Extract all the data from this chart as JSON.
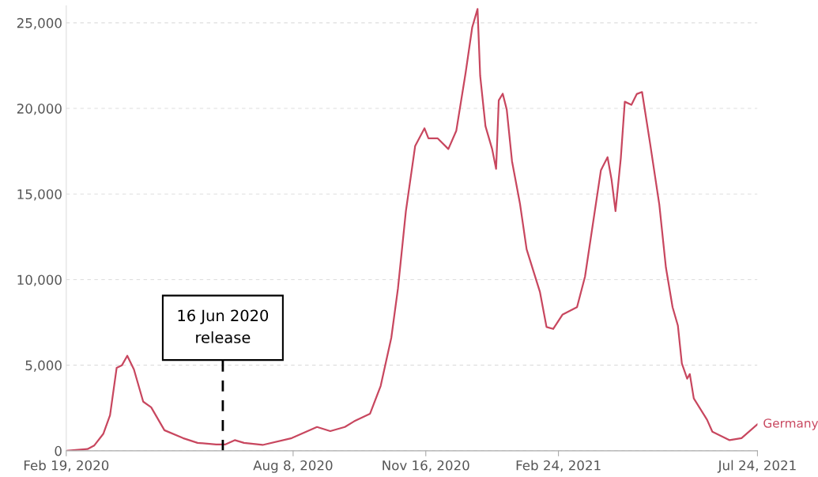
{
  "chart_data": {
    "type": "line",
    "x": [
      "2020-02-19",
      "2020-03-06",
      "2020-03-11",
      "2020-03-18",
      "2020-03-23",
      "2020-03-28",
      "2020-04-01",
      "2020-04-05",
      "2020-04-10",
      "2020-04-17",
      "2020-04-23",
      "2020-05-03",
      "2020-05-17",
      "2020-05-28",
      "2020-06-11",
      "2020-06-18",
      "2020-06-25",
      "2020-07-02",
      "2020-07-16",
      "2020-08-07",
      "2020-08-26",
      "2020-09-05",
      "2020-09-16",
      "2020-09-23",
      "2020-10-05",
      "2020-10-13",
      "2020-10-21",
      "2020-10-26",
      "2020-11-01",
      "2020-11-08",
      "2020-11-15",
      "2020-11-18",
      "2020-11-25",
      "2020-12-03",
      "2020-12-09",
      "2020-12-16",
      "2020-12-21",
      "2020-12-25",
      "2020-12-27",
      "2020-12-31",
      "2021-01-05",
      "2021-01-08",
      "2021-01-10",
      "2021-01-13",
      "2021-01-16",
      "2021-01-20",
      "2021-01-26",
      "2021-01-31",
      "2021-02-10",
      "2021-02-15",
      "2021-02-20",
      "2021-02-27",
      "2021-03-10",
      "2021-03-16",
      "2021-03-28",
      "2021-04-02",
      "2021-04-05",
      "2021-04-08",
      "2021-04-12",
      "2021-04-15",
      "2021-04-20",
      "2021-04-24",
      "2021-04-28",
      "2021-05-04",
      "2021-05-11",
      "2021-05-16",
      "2021-05-21",
      "2021-05-25",
      "2021-05-28",
      "2021-06-01",
      "2021-06-03",
      "2021-06-06",
      "2021-06-16",
      "2021-06-20",
      "2021-07-03",
      "2021-07-12",
      "2021-07-24"
    ],
    "series": [
      {
        "name": "Germany",
        "color": "#c8475f",
        "values": [
          0,
          100,
          300,
          1000,
          2080,
          4850,
          5000,
          5550,
          4750,
          2870,
          2540,
          1200,
          740,
          460,
          370,
          370,
          620,
          460,
          340,
          740,
          1390,
          1150,
          1390,
          1720,
          2170,
          3790,
          6600,
          9470,
          14000,
          17810,
          18840,
          18250,
          18250,
          17630,
          18700,
          22070,
          24740,
          25810,
          21900,
          18960,
          17630,
          16470,
          20470,
          20860,
          19940,
          16910,
          14430,
          11770,
          9290,
          7230,
          7120,
          7950,
          8390,
          10170,
          16390,
          17150,
          15850,
          14000,
          17100,
          20390,
          20210,
          20840,
          20960,
          17990,
          14390,
          10700,
          8390,
          7320,
          5100,
          4210,
          4480,
          3060,
          1810,
          1110,
          620,
          740,
          1550
        ]
      }
    ],
    "xlim": [
      "2020-02-19",
      "2021-07-24"
    ],
    "xticks": [
      {
        "value": "2020-02-19",
        "label": "Feb 19, 2020"
      },
      {
        "value": "2020-08-08",
        "label": "Aug 8, 2020"
      },
      {
        "value": "2020-11-16",
        "label": "Nov 16, 2020"
      },
      {
        "value": "2021-02-24",
        "label": "Feb 24, 2021"
      },
      {
        "value": "2021-07-24",
        "label": "Jul 24, 2021"
      }
    ],
    "ylim": [
      0,
      26000
    ],
    "yticks": [
      {
        "value": 0,
        "label": "0"
      },
      {
        "value": 5000,
        "label": "5,000"
      },
      {
        "value": 10000,
        "label": "10,000"
      },
      {
        "value": 15000,
        "label": "15,000"
      },
      {
        "value": 20000,
        "label": "20,000"
      },
      {
        "value": 25000,
        "label": "25,000"
      }
    ],
    "grid": "y",
    "legend": false,
    "line_style": "solid",
    "ref_lines": [
      {
        "axis": "x",
        "value": "2020-06-16",
        "label": "16 Jun 2020\nrelease",
        "color": "#000000",
        "line_style": "dashed"
      }
    ]
  }
}
